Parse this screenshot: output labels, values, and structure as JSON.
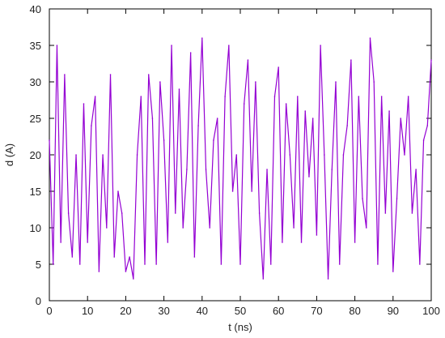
{
  "chart_data": {
    "type": "line",
    "title": "",
    "xlabel": "t (ns)",
    "ylabel": "d (A)",
    "xlim": [
      0,
      100
    ],
    "ylim": [
      0,
      40
    ],
    "xticks": [
      0,
      10,
      20,
      30,
      40,
      50,
      60,
      70,
      80,
      90,
      100
    ],
    "yticks": [
      0,
      5,
      10,
      15,
      20,
      25,
      30,
      35,
      40
    ],
    "grid": false,
    "legend": "none",
    "line_color": "#9400d3",
    "series": [
      {
        "x": [
          0,
          1,
          2,
          3,
          4,
          5,
          6,
          7,
          8,
          9,
          10,
          11,
          12,
          13,
          14,
          15,
          16,
          17,
          18,
          19,
          20,
          21,
          22,
          23,
          24,
          25,
          26,
          27,
          28,
          29,
          30,
          31,
          32,
          33,
          34,
          35,
          36,
          37,
          38,
          39,
          40,
          41,
          42,
          43,
          44,
          45,
          46,
          47,
          48,
          49,
          50,
          51,
          52,
          53,
          54,
          55,
          56,
          57,
          58,
          59,
          60,
          61,
          62,
          63,
          64,
          65,
          66,
          67,
          68,
          69,
          70,
          71,
          72,
          73,
          74,
          75,
          76,
          77,
          78,
          79,
          80,
          81,
          82,
          83,
          84,
          85,
          86,
          87,
          88,
          89,
          90,
          91,
          92,
          93,
          94,
          95,
          96,
          97,
          98,
          99,
          100
        ],
        "values": [
          22,
          5,
          35,
          8,
          31,
          12,
          6,
          20,
          5,
          27,
          8,
          24,
          28,
          4,
          20,
          10,
          31,
          6,
          15,
          12,
          4,
          6,
          3,
          20,
          28,
          5,
          31,
          25,
          5,
          30,
          22,
          8,
          35,
          12,
          29,
          10,
          18,
          34,
          6,
          24,
          36,
          18,
          10,
          22,
          25,
          5,
          28,
          35,
          15,
          20,
          5,
          27,
          33,
          15,
          30,
          12,
          3,
          18,
          5,
          28,
          32,
          8,
          27,
          20,
          10,
          28,
          8,
          26,
          17,
          25,
          9,
          35,
          20,
          3,
          18,
          30,
          5,
          20,
          24,
          33,
          8,
          28,
          14,
          10,
          36,
          30,
          5,
          28,
          12,
          26,
          4,
          14,
          25,
          20,
          28,
          12,
          18,
          5,
          22,
          24,
          33
        ]
      }
    ]
  }
}
